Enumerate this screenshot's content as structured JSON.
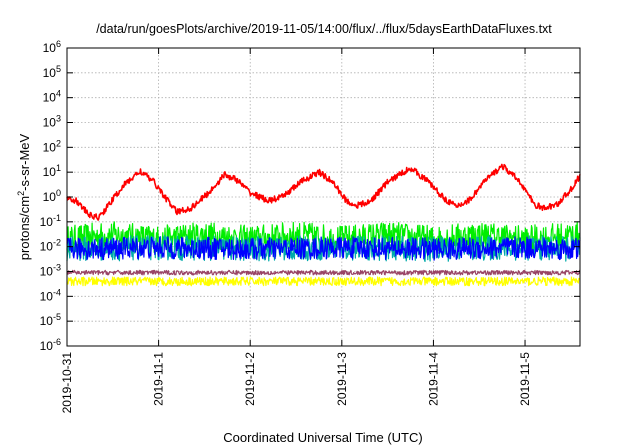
{
  "chart_data": {
    "type": "line",
    "title": "/data/run/goesPlots/archive/2019-11-05/14:00/flux/../flux/5daysEarthDataFluxes.txt",
    "xlabel": "Coordinated Universal Time (UTC)",
    "ylabel": {
      "base": "protons/cm",
      "sup": "2",
      "rest": "-s-sr-MeV"
    },
    "yscale": "log",
    "ylim": [
      1e-06,
      1000000.0
    ],
    "xlim_days": [
      0,
      5.6
    ],
    "x_ticks": [
      {
        "label": "2019-10-31",
        "day": 0
      },
      {
        "label": "2019-11-1",
        "day": 1
      },
      {
        "label": "2019-11-2",
        "day": 2
      },
      {
        "label": "2019-11-3",
        "day": 3
      },
      {
        "label": "2019-11-4",
        "day": 4
      },
      {
        "label": "2019-11-5",
        "day": 5
      }
    ],
    "y_ticks": [
      {
        "base": "10",
        "exp": "-6",
        "value": 1e-06
      },
      {
        "base": "10",
        "exp": "-5",
        "value": 1e-05
      },
      {
        "base": "10",
        "exp": "-4",
        "value": 0.0001
      },
      {
        "base": "10",
        "exp": "-3",
        "value": 0.001
      },
      {
        "base": "10",
        "exp": "-2",
        "value": 0.01
      },
      {
        "base": "10",
        "exp": "-1",
        "value": 0.1
      },
      {
        "base": "10",
        "exp": "0",
        "value": 1
      },
      {
        "base": "10",
        "exp": "1",
        "value": 10
      },
      {
        "base": "10",
        "exp": "2",
        "value": 100
      },
      {
        "base": "10",
        "exp": "3",
        "value": 1000
      },
      {
        "base": "10",
        "exp": "4",
        "value": 10000
      },
      {
        "base": "10",
        "exp": "5",
        "value": 100000
      },
      {
        "base": "10",
        "exp": "6",
        "value": 1000000
      }
    ],
    "grid": true,
    "series": [
      {
        "color": "#00ee00",
        "values": [
          [
            0,
            0.02
          ],
          [
            0.5,
            0.03
          ],
          [
            1,
            0.02
          ],
          [
            1.5,
            0.03
          ],
          [
            2,
            0.02
          ],
          [
            2.5,
            0.03
          ],
          [
            3,
            0.02
          ],
          [
            3.5,
            0.03
          ],
          [
            4,
            0.02
          ],
          [
            4.5,
            0.03
          ],
          [
            5,
            0.02
          ],
          [
            5.6,
            0.03
          ]
        ]
      },
      {
        "color": "#00aaaa",
        "values": [
          [
            0,
            0.008
          ],
          [
            1,
            0.009
          ],
          [
            2,
            0.008
          ],
          [
            3,
            0.009
          ],
          [
            4,
            0.008
          ],
          [
            5,
            0.009
          ],
          [
            5.6,
            0.008
          ]
        ]
      },
      {
        "color": "#0000ff",
        "values": [
          [
            0,
            0.008
          ],
          [
            1,
            0.009
          ],
          [
            2,
            0.008
          ],
          [
            3,
            0.009
          ],
          [
            4,
            0.008
          ],
          [
            5,
            0.009
          ],
          [
            5.6,
            0.008
          ]
        ]
      },
      {
        "color": "#ffff00",
        "values": [
          [
            0,
            0.0004
          ],
          [
            1,
            0.0004
          ],
          [
            2,
            0.0004
          ],
          [
            3,
            0.0004
          ],
          [
            4,
            0.0004
          ],
          [
            5,
            0.0004
          ],
          [
            5.6,
            0.0004
          ]
        ]
      },
      {
        "color": "#994466",
        "values": [
          [
            0,
            0.0009
          ],
          [
            1,
            0.0009
          ],
          [
            2,
            0.0009
          ],
          [
            3,
            0.0009
          ],
          [
            4,
            0.0009
          ],
          [
            5,
            0.0009
          ],
          [
            5.6,
            0.0009
          ]
        ]
      },
      {
        "color": "#ff0000",
        "values": [
          [
            0,
            1.0
          ],
          [
            0.1,
            0.7
          ],
          [
            0.25,
            0.18
          ],
          [
            0.35,
            0.15
          ],
          [
            0.5,
            0.8
          ],
          [
            0.62,
            3.0
          ],
          [
            0.8,
            11
          ],
          [
            0.95,
            4.0
          ],
          [
            1.1,
            0.7
          ],
          [
            1.2,
            0.25
          ],
          [
            1.35,
            0.35
          ],
          [
            1.55,
            1.5
          ],
          [
            1.72,
            8
          ],
          [
            1.85,
            5
          ],
          [
            2.0,
            1.5
          ],
          [
            2.2,
            0.7
          ],
          [
            2.35,
            1.0
          ],
          [
            2.55,
            4.0
          ],
          [
            2.75,
            10
          ],
          [
            2.9,
            4.0
          ],
          [
            3.05,
            0.7
          ],
          [
            3.15,
            0.45
          ],
          [
            3.3,
            0.6
          ],
          [
            3.5,
            4.0
          ],
          [
            3.75,
            15
          ],
          [
            3.95,
            4.0
          ],
          [
            4.1,
            1.0
          ],
          [
            4.25,
            0.4
          ],
          [
            4.4,
            0.8
          ],
          [
            4.55,
            4.0
          ],
          [
            4.75,
            18
          ],
          [
            4.95,
            4.0
          ],
          [
            5.1,
            0.5
          ],
          [
            5.2,
            0.35
          ],
          [
            5.35,
            0.5
          ],
          [
            5.5,
            2.0
          ],
          [
            5.6,
            7
          ]
        ]
      }
    ]
  }
}
